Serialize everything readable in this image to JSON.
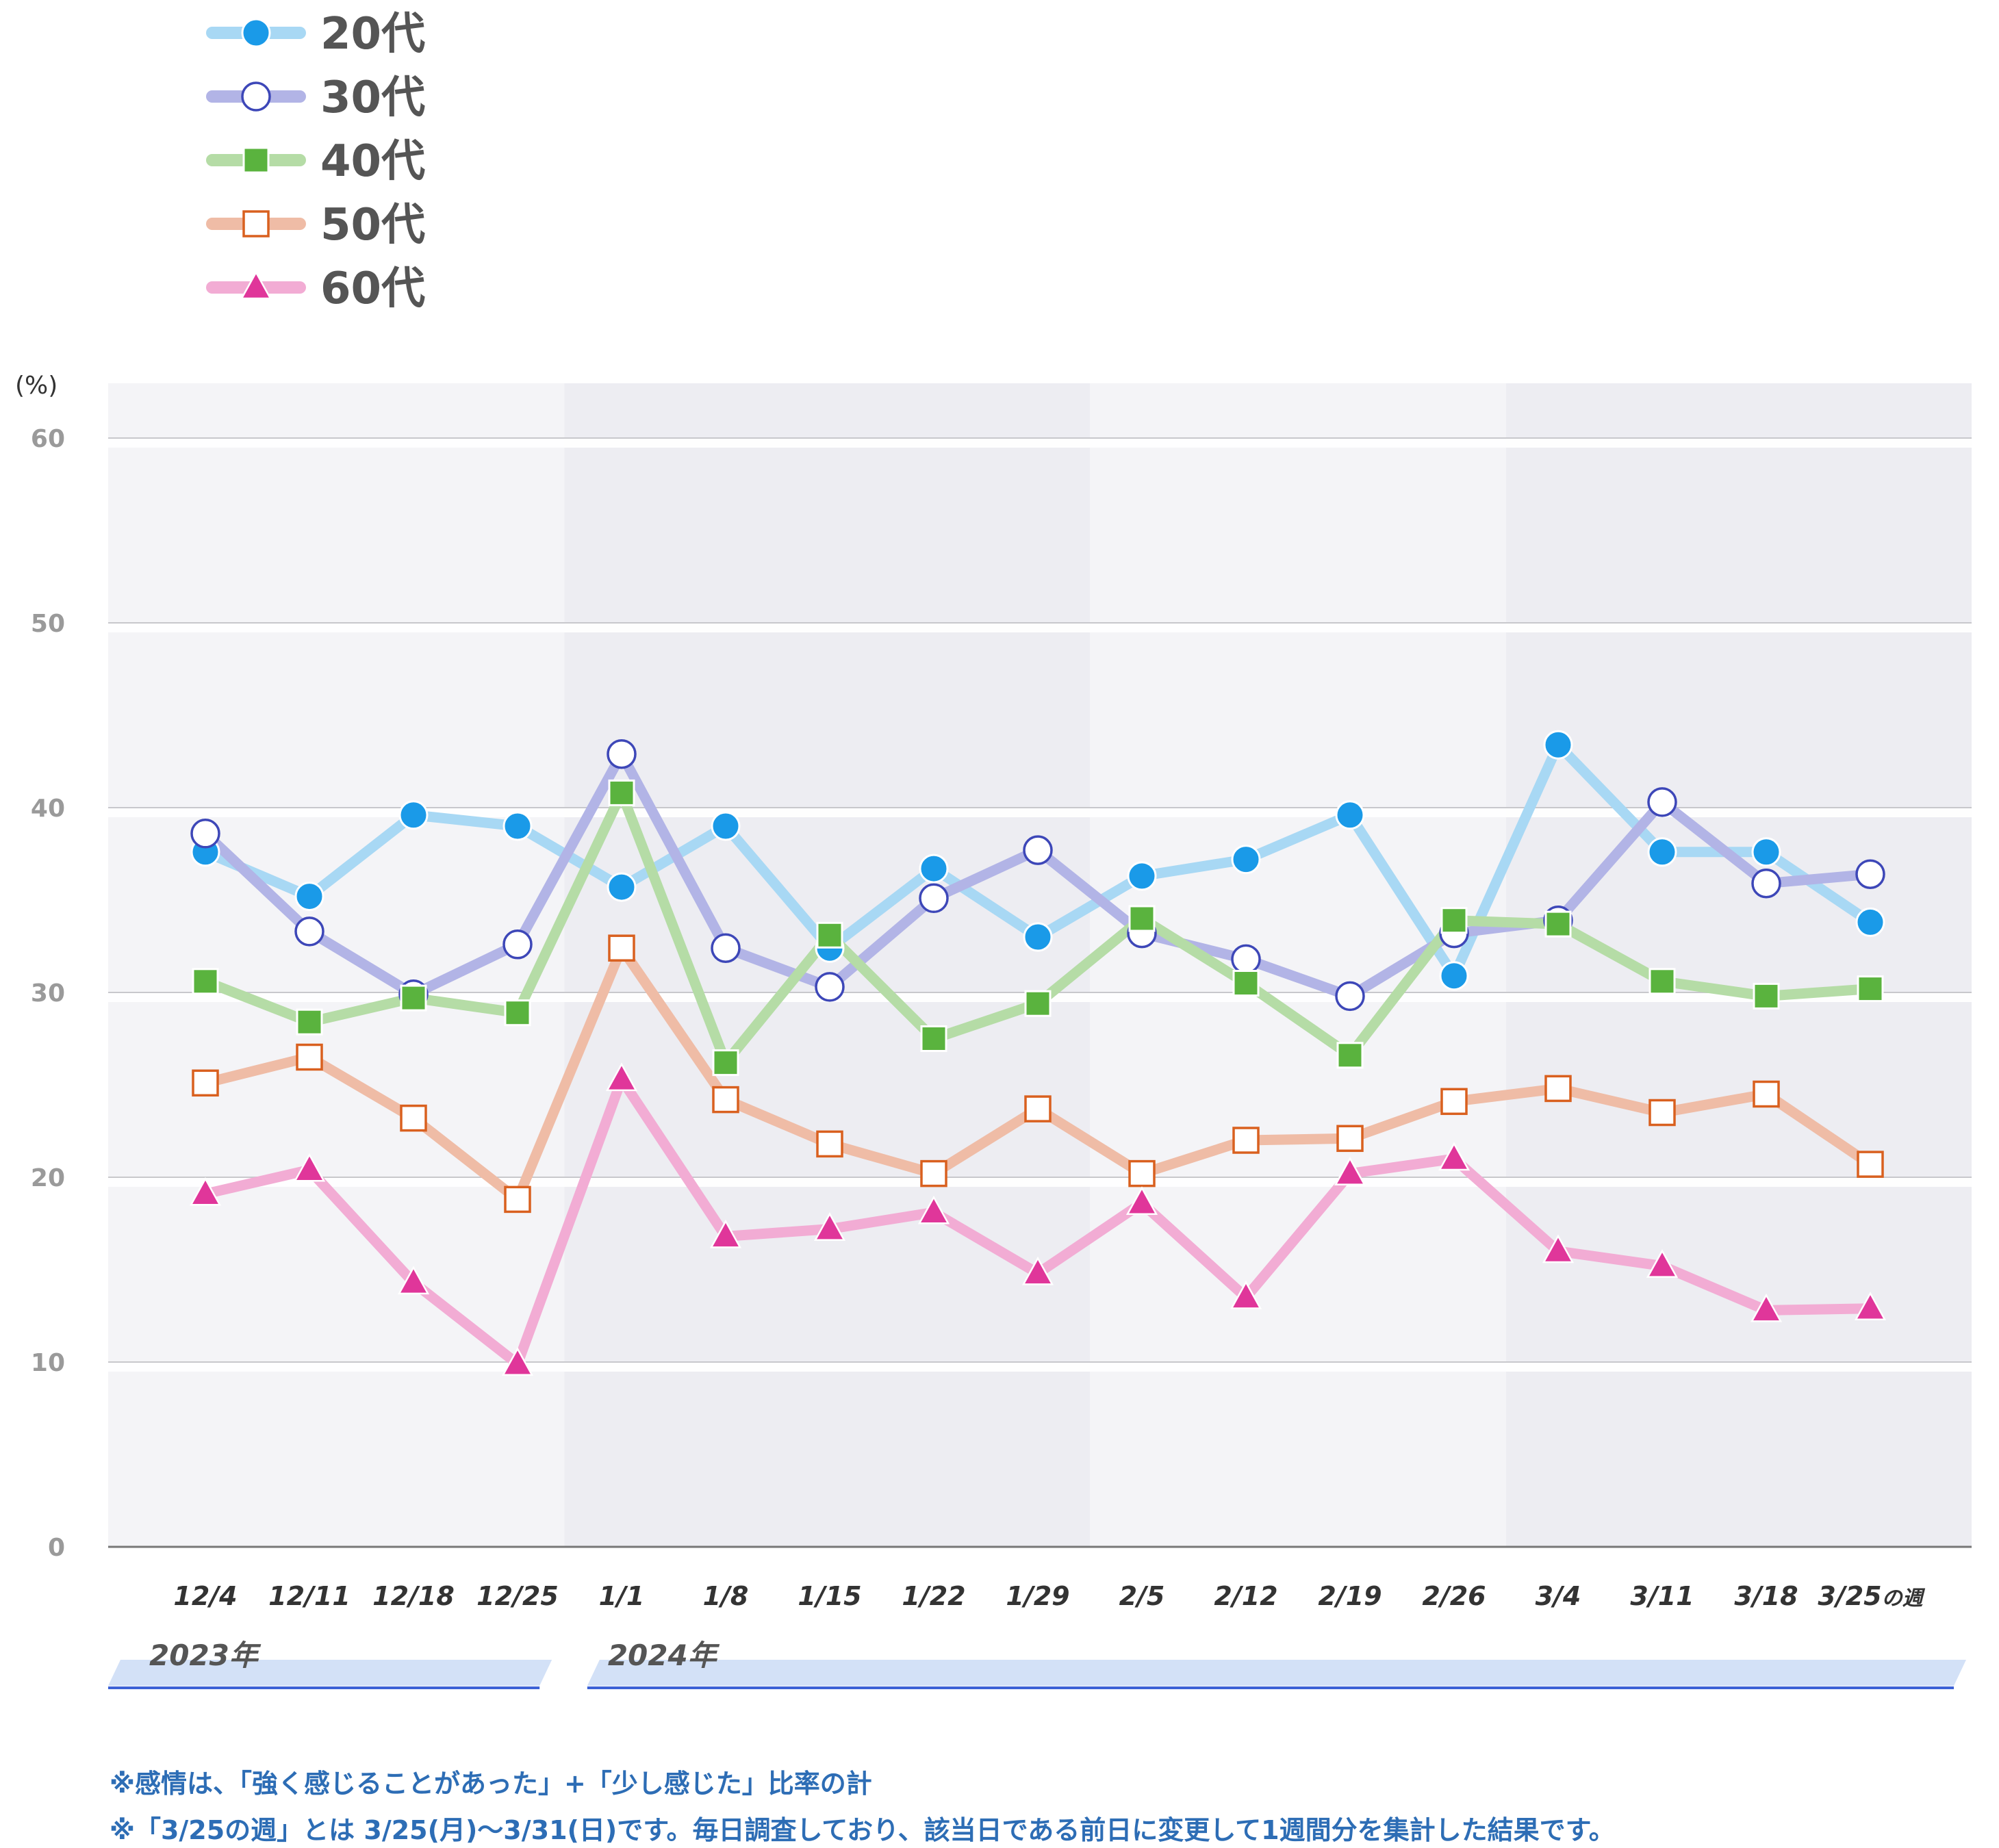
{
  "chart_data": {
    "type": "line",
    "ylabel": "(%)",
    "ylim": [
      0,
      60
    ],
    "yticks": [
      0,
      10,
      20,
      30,
      40,
      50,
      60
    ],
    "grid": "horizontal",
    "legend_position": "top-left",
    "categories": [
      "12/4",
      "12/11",
      "12/18",
      "12/25",
      "1/1",
      "1/8",
      "1/15",
      "1/22",
      "1/29",
      "2/5",
      "2/12",
      "2/19",
      "2/26",
      "3/4",
      "3/11",
      "3/18",
      "3/25"
    ],
    "last_category_suffix": "の週",
    "year_groups": [
      {
        "label": "2023年",
        "from": 0,
        "to": 3
      },
      {
        "label": "2024年",
        "from": 4,
        "to": 16
      }
    ],
    "series": [
      {
        "name": "20代",
        "marker": "circle-filled",
        "line_color": "#a8d8f4",
        "marker_fill": "#1a9ae8",
        "marker_stroke": "#ffffff",
        "values": [
          37.6,
          35.2,
          39.6,
          39.0,
          35.7,
          39.0,
          32.4,
          36.7,
          33.0,
          36.3,
          37.2,
          39.6,
          30.9,
          43.4,
          37.6,
          37.6,
          33.8
        ]
      },
      {
        "name": "30代",
        "marker": "circle-open",
        "line_color": "#b2b4e6",
        "marker_fill": "#ffffff",
        "marker_stroke": "#3d47b8",
        "values": [
          38.6,
          33.3,
          29.9,
          32.6,
          42.9,
          32.4,
          30.3,
          35.1,
          37.7,
          33.2,
          31.8,
          29.8,
          33.2,
          33.9,
          40.3,
          35.9,
          36.4
        ]
      },
      {
        "name": "40代",
        "marker": "square-filled",
        "line_color": "#b5dca6",
        "marker_fill": "#5ab33e",
        "marker_stroke": "#ffffff",
        "values": [
          30.6,
          28.4,
          29.7,
          28.9,
          40.8,
          26.2,
          33.1,
          27.5,
          29.4,
          34.0,
          30.5,
          26.6,
          33.9,
          33.7,
          30.6,
          29.8,
          30.2
        ]
      },
      {
        "name": "50代",
        "marker": "square-open",
        "line_color": "#efbca6",
        "marker_fill": "#ffffff",
        "marker_stroke": "#d9601f",
        "values": [
          25.1,
          26.5,
          23.2,
          18.8,
          32.4,
          24.2,
          21.8,
          20.2,
          23.7,
          20.2,
          22.0,
          22.1,
          24.1,
          24.8,
          23.5,
          24.5,
          20.7
        ]
      },
      {
        "name": "60代",
        "marker": "triangle-filled",
        "line_color": "#f2acd4",
        "marker_fill": "#e0369a",
        "marker_stroke": "#ffffff",
        "values": [
          19.1,
          20.4,
          14.3,
          9.9,
          25.3,
          16.8,
          17.2,
          18.1,
          14.8,
          18.6,
          13.5,
          20.2,
          21.0,
          16.0,
          15.2,
          12.8,
          12.9
        ]
      }
    ]
  },
  "footnotes": [
    "※感情は、「強く感じることがあった」+「少し感じた」比率の計",
    "※「3/25の週」とは 3/25(月)～3/31(日)です。毎日調査しており、該当日である前日に変更して1週間分を集計した結果です。"
  ]
}
